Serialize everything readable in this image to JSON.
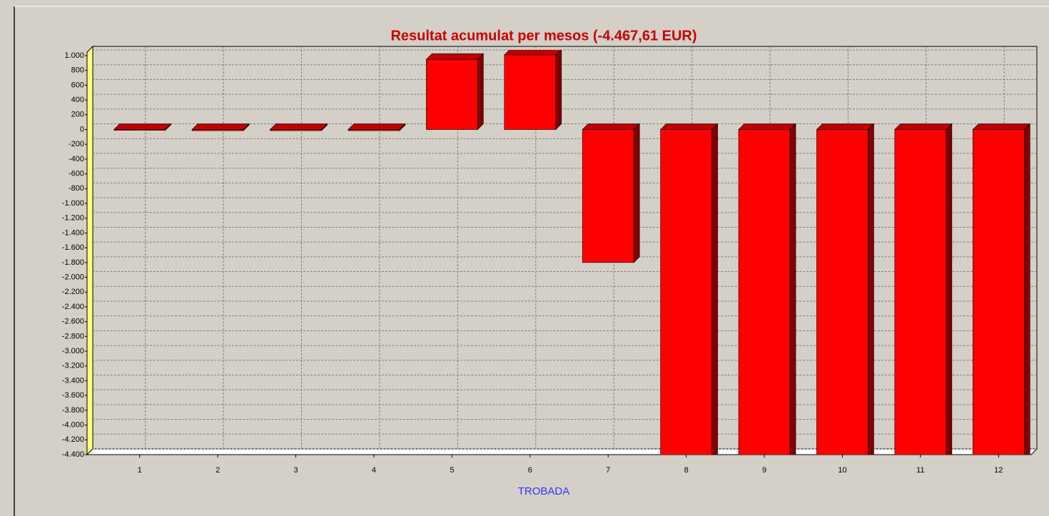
{
  "chart_data": {
    "type": "bar",
    "title": "Resultat acumulat per mesos (-4.467,61 EUR)",
    "x_label": "TROBADA",
    "categories": [
      "1",
      "2",
      "3",
      "4",
      "5",
      "6",
      "7",
      "8",
      "9",
      "10",
      "11",
      "12"
    ],
    "values": [
      -10,
      -15,
      -15,
      -15,
      950,
      1010,
      -1800,
      -4467.61,
      -4467.61,
      -4467.61,
      -4467.61,
      -4467.61
    ],
    "color": "#ff0000",
    "ylim": [
      -4400,
      1000
    ],
    "yticks": [
      {
        "value": 1000,
        "label": "1.000"
      },
      800,
      600,
      400,
      200,
      0,
      -200,
      -400,
      -600,
      -800,
      {
        "value": -1000,
        "label": "-1.000"
      },
      {
        "value": -1200,
        "label": "-1.200"
      },
      {
        "value": -1400,
        "label": "-1.400"
      },
      {
        "value": -1600,
        "label": "-1.600"
      },
      {
        "value": -1800,
        "label": "-1.800"
      },
      {
        "value": -2000,
        "label": "-2.000"
      },
      {
        "value": -2200,
        "label": "-2.200"
      },
      {
        "value": -2400,
        "label": "-2.400"
      },
      {
        "value": -2600,
        "label": "-2.600"
      },
      {
        "value": -2800,
        "label": "-2.800"
      },
      {
        "value": -3000,
        "label": "-3.000"
      },
      {
        "value": -3200,
        "label": "-3.200"
      },
      {
        "value": -3400,
        "label": "-3.400"
      },
      {
        "value": -3600,
        "label": "-3.600"
      },
      {
        "value": -3800,
        "label": "-3.800"
      },
      {
        "value": -4000,
        "label": "-4.000"
      },
      {
        "value": -4200,
        "label": "-4.200"
      },
      {
        "value": -4400,
        "label": "-4.400"
      }
    ],
    "grid": true
  }
}
